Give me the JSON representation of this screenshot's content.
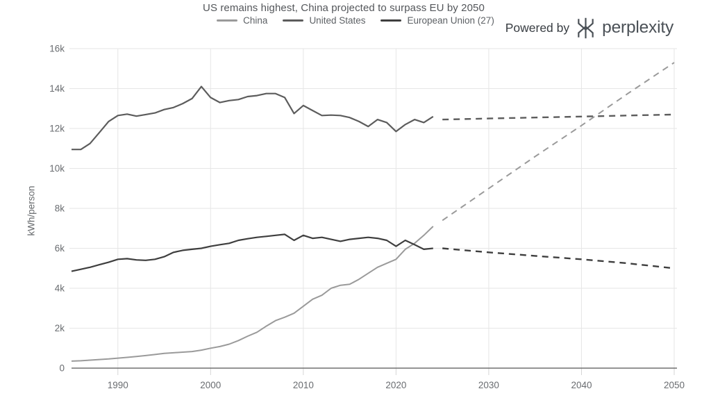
{
  "header": {
    "powered_by": {
      "prefix": "Powered by",
      "brand": "perplexity",
      "icon": "perplexity-asterisk-icon"
    }
  },
  "chart_data": {
    "type": "line",
    "title": "US remains highest, China projected to surpass EU by 2050",
    "xlabel": "",
    "ylabel": "kWh/person",
    "xlim": [
      1985,
      2050
    ],
    "ylim": [
      0,
      16000
    ],
    "grid": true,
    "x_ticks": [
      {
        "value": 1990,
        "label": "1990"
      },
      {
        "value": 2000,
        "label": "2000"
      },
      {
        "value": 2010,
        "label": "2010"
      },
      {
        "value": 2020,
        "label": "2020"
      },
      {
        "value": 2030,
        "label": "2030"
      },
      {
        "value": 2040,
        "label": "2040"
      },
      {
        "value": 2050,
        "label": "2050"
      }
    ],
    "y_ticks": [
      {
        "value": 0,
        "label": "0"
      },
      {
        "value": 2000,
        "label": "2k"
      },
      {
        "value": 4000,
        "label": "4k"
      },
      {
        "value": 6000,
        "label": "6k"
      },
      {
        "value": 8000,
        "label": "8k"
      },
      {
        "value": 10000,
        "label": "10k"
      },
      {
        "value": 12000,
        "label": "12k"
      },
      {
        "value": 14000,
        "label": "14k"
      },
      {
        "value": 16000,
        "label": "16k"
      }
    ],
    "legend": {
      "position": "top",
      "entries": [
        {
          "name": "China",
          "color": "#9a9a9a"
        },
        {
          "name": "United States",
          "color": "#5c5c5c"
        },
        {
          "name": "European Union (27)",
          "color": "#3e3e3e"
        }
      ]
    },
    "series": [
      {
        "name": "China",
        "color": "#9a9a9a",
        "style": "solid",
        "width": 2,
        "x": [
          1985,
          1986,
          1987,
          1988,
          1989,
          1990,
          1991,
          1992,
          1993,
          1994,
          1995,
          1996,
          1997,
          1998,
          1999,
          2000,
          2001,
          2002,
          2003,
          2004,
          2005,
          2006,
          2007,
          2008,
          2009,
          2010,
          2011,
          2012,
          2013,
          2014,
          2015,
          2016,
          2017,
          2018,
          2019,
          2020,
          2021,
          2022,
          2023,
          2024
        ],
        "y": [
          350,
          370,
          400,
          430,
          460,
          500,
          540,
          580,
          630,
          680,
          740,
          770,
          800,
          830,
          900,
          1000,
          1080,
          1200,
          1380,
          1600,
          1800,
          2100,
          2380,
          2550,
          2750,
          3100,
          3450,
          3650,
          4000,
          4150,
          4200,
          4450,
          4750,
          5050,
          5250,
          5450,
          5950,
          6250,
          6650,
          7100
        ]
      },
      {
        "name": "China (projected)",
        "color": "#9a9a9a",
        "style": "dashed",
        "width": 2,
        "x": [
          2025,
          2030,
          2035,
          2040,
          2045,
          2050
        ],
        "y": [
          7400,
          9000,
          10600,
          12150,
          13750,
          15300
        ]
      },
      {
        "name": "United States",
        "color": "#5c5c5c",
        "style": "solid",
        "width": 2.2,
        "x": [
          1985,
          1986,
          1987,
          1988,
          1989,
          1990,
          1991,
          1992,
          1993,
          1994,
          1995,
          1996,
          1997,
          1998,
          1999,
          2000,
          2001,
          2002,
          2003,
          2004,
          2005,
          2006,
          2007,
          2008,
          2009,
          2010,
          2011,
          2012,
          2013,
          2014,
          2015,
          2016,
          2017,
          2018,
          2019,
          2020,
          2021,
          2022,
          2023,
          2024
        ],
        "y": [
          10950,
          10950,
          11250,
          11800,
          12350,
          12650,
          12720,
          12620,
          12700,
          12780,
          12950,
          13050,
          13250,
          13500,
          14100,
          13550,
          13300,
          13400,
          13450,
          13600,
          13650,
          13750,
          13750,
          13550,
          12750,
          13150,
          12900,
          12650,
          12670,
          12650,
          12550,
          12350,
          12100,
          12450,
          12300,
          11850,
          12200,
          12450,
          12300,
          12600
        ]
      },
      {
        "name": "United States (projected)",
        "color": "#5c5c5c",
        "style": "dashed",
        "width": 2.4,
        "x": [
          2025,
          2030,
          2035,
          2040,
          2045,
          2050
        ],
        "y": [
          12450,
          12500,
          12550,
          12600,
          12650,
          12700
        ]
      },
      {
        "name": "European Union (27)",
        "color": "#3e3e3e",
        "style": "solid",
        "width": 2.2,
        "x": [
          1985,
          1986,
          1987,
          1988,
          1989,
          1990,
          1991,
          1992,
          1993,
          1994,
          1995,
          1996,
          1997,
          1998,
          1999,
          2000,
          2001,
          2002,
          2003,
          2004,
          2005,
          2006,
          2007,
          2008,
          2009,
          2010,
          2011,
          2012,
          2013,
          2014,
          2015,
          2016,
          2017,
          2018,
          2019,
          2020,
          2021,
          2022,
          2023,
          2024
        ],
        "y": [
          4850,
          4950,
          5050,
          5180,
          5300,
          5450,
          5480,
          5420,
          5400,
          5450,
          5580,
          5800,
          5900,
          5950,
          6000,
          6100,
          6180,
          6250,
          6400,
          6480,
          6550,
          6600,
          6650,
          6700,
          6400,
          6650,
          6500,
          6550,
          6450,
          6350,
          6450,
          6500,
          6550,
          6500,
          6400,
          6100,
          6400,
          6180,
          5950,
          6000
        ]
      },
      {
        "name": "European Union (27) (projected)",
        "color": "#3e3e3e",
        "style": "dashed",
        "width": 2.4,
        "x": [
          2025,
          2030,
          2035,
          2040,
          2045,
          2050
        ],
        "y": [
          6000,
          5800,
          5620,
          5450,
          5250,
          5000
        ]
      }
    ],
    "colors": {
      "gridline": "#e6e6e6",
      "axis_line": "#707070",
      "tick": "#d5d5d5",
      "axis_text": "#696c70"
    }
  }
}
